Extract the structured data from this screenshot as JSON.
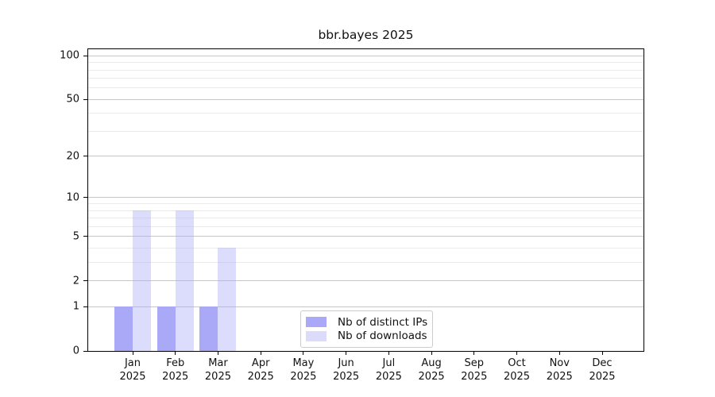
{
  "chart_data": {
    "type": "bar",
    "title": "bbr.bayes 2025",
    "categories": [
      "Jan 2025",
      "Feb 2025",
      "Mar 2025",
      "Apr 2025",
      "May 2025",
      "Jun 2025",
      "Jul 2025",
      "Aug 2025",
      "Sep 2025",
      "Oct 2025",
      "Nov 2025",
      "Dec 2025"
    ],
    "series": [
      {
        "name": "Nb of distinct IPs",
        "values": [
          1,
          1,
          1,
          0,
          0,
          0,
          0,
          0,
          0,
          0,
          0,
          0
        ],
        "color": "#a9a9f8",
        "fill_css": "#a9a9f8"
      },
      {
        "name": "Nb of downloads",
        "values": [
          8,
          8,
          4,
          0,
          0,
          0,
          0,
          0,
          0,
          0,
          0,
          0
        ],
        "color": "#dcdcfa",
        "fill_css": "rgba(169,169,248,0.41)"
      }
    ],
    "xlabel": "",
    "ylabel": "",
    "yscale": "log1p",
    "ylim": [
      0,
      111
    ],
    "y_tick_values": [
      0,
      1,
      2,
      5,
      10,
      20,
      50,
      100
    ],
    "y_gridline_values": [
      1,
      2,
      3,
      4,
      5,
      6,
      7,
      8,
      9,
      10,
      20,
      30,
      40,
      50,
      60,
      70,
      80,
      90,
      100
    ],
    "grid": {
      "major_color": "#c6c6c6",
      "minor_color": "#eaeaea",
      "on": true
    },
    "legend_position": "lower center"
  }
}
